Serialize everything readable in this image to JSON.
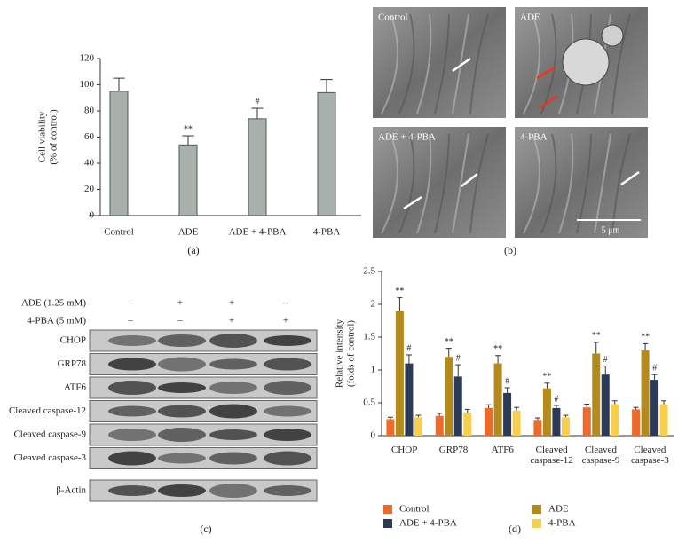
{
  "chart_data": [
    {
      "type": "bar",
      "caption": "(a)",
      "ylabel": [
        "Cell viability",
        "(% of control)"
      ],
      "categories": [
        "Control",
        "ADE",
        "ADE + 4-PBA",
        "4-PBA"
      ],
      "values": [
        95,
        54,
        74,
        94
      ],
      "errors": [
        10,
        7,
        8,
        10
      ],
      "annotations": [
        null,
        "**",
        "#",
        null
      ],
      "color": "#a9b1ad",
      "ylim": [
        0,
        120
      ],
      "yticks": [
        0,
        20,
        40,
        60,
        80,
        100,
        120
      ]
    },
    {
      "type": "bar",
      "caption": "(d)",
      "ylabel": [
        "Relative intensity",
        "(folds of control)"
      ],
      "categories": [
        "CHOP",
        "GRP78",
        "ATF6",
        "Cleaved caspase-12",
        "Cleaved caspase-9",
        "Cleaved caspase-3"
      ],
      "series": [
        {
          "name": "Control",
          "color": "#ee6a2a",
          "values": [
            0.25,
            0.3,
            0.42,
            0.24,
            0.43,
            0.4
          ],
          "errors": [
            0.03,
            0.04,
            0.05,
            0.03,
            0.05,
            0.03
          ]
        },
        {
          "name": "ADE",
          "color": "#b58a1c",
          "values": [
            1.9,
            1.2,
            1.1,
            0.72,
            1.25,
            1.3
          ],
          "errors": [
            0.2,
            0.13,
            0.12,
            0.08,
            0.17,
            0.1
          ],
          "annotations": [
            "**",
            "**",
            "**",
            "**",
            "**",
            "**"
          ]
        },
        {
          "name": "ADE + 4-PBA",
          "color": "#2c3a58",
          "values": [
            1.1,
            0.9,
            0.65,
            0.42,
            0.93,
            0.85
          ],
          "errors": [
            0.13,
            0.18,
            0.08,
            0.04,
            0.13,
            0.08
          ],
          "annotations": [
            "#",
            "#",
            "#",
            "#",
            "#",
            "#"
          ]
        },
        {
          "name": "4-PBA",
          "color": "#f6d04d",
          "values": [
            0.28,
            0.35,
            0.38,
            0.28,
            0.48,
            0.48
          ],
          "errors": [
            0.03,
            0.05,
            0.05,
            0.03,
            0.05,
            0.05
          ]
        }
      ],
      "ylim": [
        0,
        2.5
      ],
      "yticks": [
        0,
        0.5,
        1,
        1.5,
        2,
        2.5
      ],
      "legend": "bottom"
    }
  ],
  "panel_b": {
    "caption": "(b)",
    "images": [
      "Control",
      "ADE",
      "ADE + 4-PBA",
      "4-PBA"
    ],
    "scale_bar": "5 μm"
  },
  "panel_c": {
    "caption": "(c)",
    "treatments": [
      {
        "label": "ADE (1.25 mM)",
        "lanes": [
          "–",
          "+",
          "+",
          "–"
        ]
      },
      {
        "label": "4-PBA (5 mM)",
        "lanes": [
          "–",
          "–",
          "+",
          "+"
        ]
      }
    ],
    "bands": [
      "CHOP",
      "GRP78",
      "ATF6",
      "Cleaved caspase-12",
      "Cleaved caspase-9",
      "Cleaved caspase-3",
      "β-Actin"
    ]
  }
}
